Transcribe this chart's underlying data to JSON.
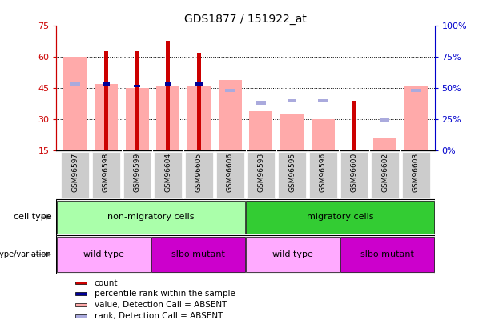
{
  "title": "GDS1877 / 151922_at",
  "samples": [
    "GSM96597",
    "GSM96598",
    "GSM96599",
    "GSM96604",
    "GSM96605",
    "GSM96606",
    "GSM96593",
    "GSM96595",
    "GSM96596",
    "GSM96600",
    "GSM96602",
    "GSM96603"
  ],
  "count": [
    null,
    63,
    63,
    68,
    62,
    null,
    null,
    null,
    null,
    39,
    null,
    null
  ],
  "percentile_rank": [
    null,
    47,
    46,
    47,
    47,
    null,
    null,
    null,
    null,
    null,
    null,
    null
  ],
  "value_absent": [
    60,
    47,
    45,
    46,
    46,
    49,
    34,
    33,
    30,
    null,
    21,
    46
  ],
  "rank_absent": [
    47,
    null,
    null,
    null,
    null,
    44,
    38,
    39,
    39,
    null,
    30,
    44
  ],
  "ylim_left": [
    15,
    75
  ],
  "ylim_right": [
    0,
    100
  ],
  "yticks_left": [
    15,
    30,
    45,
    60,
    75
  ],
  "yticks_right": [
    0,
    25,
    50,
    75,
    100
  ],
  "yticklabels_right": [
    "0%",
    "25%",
    "50%",
    "75%",
    "100%"
  ],
  "cell_type_groups": [
    {
      "label": "non-migratory cells",
      "start": 0,
      "end": 5,
      "color": "#aaffaa"
    },
    {
      "label": "migratory cells",
      "start": 6,
      "end": 11,
      "color": "#33cc33"
    }
  ],
  "genotype_groups": [
    {
      "label": "wild type",
      "start": 0,
      "end": 2,
      "color": "#ffaaff"
    },
    {
      "label": "slbo mutant",
      "start": 3,
      "end": 5,
      "color": "#cc00cc"
    },
    {
      "label": "wild type",
      "start": 6,
      "end": 8,
      "color": "#ffaaff"
    },
    {
      "label": "slbo mutant",
      "start": 9,
      "end": 11,
      "color": "#cc00cc"
    }
  ],
  "count_color": "#cc0000",
  "percentile_color": "#000099",
  "value_absent_color": "#ffaaaa",
  "rank_absent_color": "#aaaadd",
  "legend_items": [
    {
      "label": "count",
      "color": "#cc0000"
    },
    {
      "label": "percentile rank within the sample",
      "color": "#000099"
    },
    {
      "label": "value, Detection Call = ABSENT",
      "color": "#ffaaaa"
    },
    {
      "label": "rank, Detection Call = ABSENT",
      "color": "#aaaadd"
    }
  ],
  "tick_color_left": "#cc0000",
  "tick_color_right": "#0000cc",
  "label_bg_color": "#cccccc"
}
